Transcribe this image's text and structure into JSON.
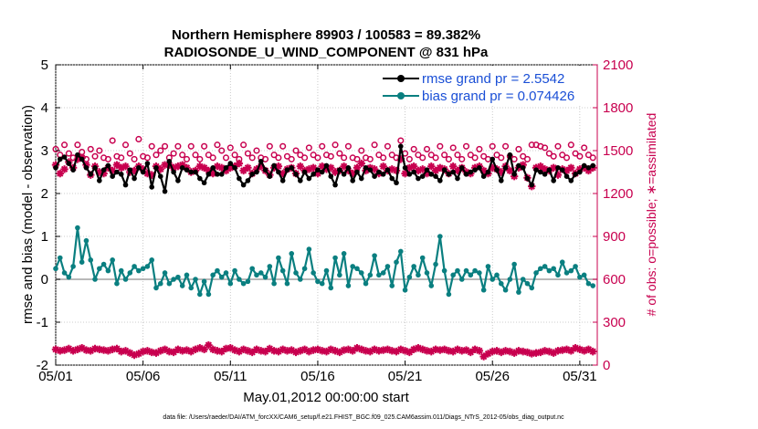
{
  "chart_data": {
    "type": "line",
    "title": "Northern Hemisphere 89903 / 100583 = 89.382%",
    "subtitle": "RADIOSONDE_U_WIND_COMPONENT @ 831 hPa",
    "xlabel": "May.01,2012 00:00:00 start",
    "ylabel": "rmse and bias (model - observation)",
    "y2label": "# of obs: o=possible; ∗=assimilated",
    "xlim": [
      0,
      31
    ],
    "ylim": [
      -2,
      5
    ],
    "y2lim": [
      0,
      2100
    ],
    "x_ticks": [
      {
        "x": 0,
        "label": "05/01"
      },
      {
        "x": 5,
        "label": "05/06"
      },
      {
        "x": 10,
        "label": "05/11"
      },
      {
        "x": 15,
        "label": "05/16"
      },
      {
        "x": 20,
        "label": "05/21"
      },
      {
        "x": 25,
        "label": "05/26"
      },
      {
        "x": 30,
        "label": "05/31"
      }
    ],
    "y_ticks": [
      {
        "v": -2,
        "label": "-2"
      },
      {
        "v": -1,
        "label": "-1"
      },
      {
        "v": 0,
        "label": "0"
      },
      {
        "v": 1,
        "label": "1"
      },
      {
        "v": 2,
        "label": "2"
      },
      {
        "v": 3,
        "label": "3"
      },
      {
        "v": 4,
        "label": "4"
      },
      {
        "v": 5,
        "label": "5"
      }
    ],
    "y2_ticks": [
      {
        "v": 0,
        "label": "0"
      },
      {
        "v": 300,
        "label": "300"
      },
      {
        "v": 600,
        "label": "600"
      },
      {
        "v": 900,
        "label": "900"
      },
      {
        "v": 1200,
        "label": "1200"
      },
      {
        "v": 1500,
        "label": "1500"
      },
      {
        "v": 1800,
        "label": "1800"
      },
      {
        "v": 2100,
        "label": "2100"
      }
    ],
    "legend": {
      "position": "top-right",
      "entries": [
        "rmse grand pr = 2.5542",
        "bias grand pr = 0.074426"
      ]
    },
    "colors": {
      "rmse": "#000000",
      "bias": "#0a7f80",
      "obs": "#c8004f",
      "zero_line": "#a0a0a0"
    },
    "n_points": 124,
    "x_start": 0,
    "x_step": 0.25,
    "series": [
      {
        "name": "rmse",
        "values": [
          2.6,
          2.8,
          2.85,
          2.7,
          2.55,
          2.9,
          2.8,
          2.6,
          2.45,
          2.6,
          2.3,
          2.55,
          2.65,
          2.4,
          2.5,
          2.45,
          2.2,
          2.55,
          2.35,
          2.6,
          2.5,
          2.7,
          2.15,
          2.6,
          2.4,
          2.05,
          2.75,
          2.5,
          2.3,
          2.6,
          2.55,
          2.5,
          2.5,
          2.35,
          2.25,
          2.45,
          2.6,
          2.45,
          2.45,
          2.6,
          2.7,
          2.6,
          2.35,
          2.2,
          2.3,
          2.45,
          2.5,
          2.75,
          2.55,
          2.4,
          2.65,
          2.5,
          2.3,
          2.55,
          2.6,
          2.45,
          2.3,
          2.5,
          2.35,
          2.45,
          2.55,
          2.5,
          2.65,
          2.4,
          2.2,
          2.55,
          2.45,
          2.6,
          2.3,
          2.5,
          2.35,
          2.6,
          2.55,
          2.4,
          2.5,
          2.45,
          2.55,
          2.35,
          2.25,
          3.1,
          2.6,
          2.45,
          2.5,
          2.35,
          2.4,
          2.55,
          2.45,
          2.4,
          2.3,
          2.55,
          2.45,
          2.5,
          2.35,
          2.6,
          2.45,
          2.5,
          2.55,
          2.6,
          2.4,
          2.5,
          2.8,
          2.55,
          2.3,
          2.6,
          2.9,
          2.45,
          2.65,
          2.6,
          2.35,
          2.2,
          2.55,
          2.5,
          2.45,
          2.55,
          2.3,
          2.6,
          2.55,
          2.4,
          2.3,
          2.45,
          2.5,
          2.65,
          2.6,
          2.65
        ]
      },
      {
        "name": "bias",
        "values": [
          0.25,
          0.5,
          0.15,
          0.05,
          0.3,
          1.2,
          0.4,
          0.9,
          0.45,
          0.0,
          0.25,
          0.35,
          0.2,
          0.45,
          -0.1,
          0.2,
          0.0,
          0.15,
          0.3,
          0.2,
          0.25,
          0.3,
          0.45,
          -0.2,
          -0.1,
          0.15,
          -0.1,
          0.0,
          0.05,
          -0.15,
          0.1,
          -0.2,
          0.0,
          -0.35,
          -0.05,
          -0.35,
          0.1,
          0.2,
          0.05,
          0.15,
          -0.1,
          0.2,
          0.0,
          -0.1,
          -0.05,
          0.25,
          0.1,
          0.15,
          0.05,
          0.3,
          -0.1,
          0.5,
          0.2,
          -0.1,
          0.6,
          0.15,
          0.0,
          0.25,
          0.7,
          0.15,
          -0.05,
          -0.1,
          0.2,
          -0.2,
          0.5,
          0.1,
          0.6,
          -0.15,
          0.3,
          0.25,
          0.15,
          -0.1,
          0.1,
          0.55,
          0.1,
          0.15,
          0.3,
          -0.15,
          0.4,
          0.65,
          -0.25,
          0.05,
          0.3,
          0.1,
          0.5,
          0.15,
          -0.15,
          0.35,
          1.0,
          0.2,
          -0.35,
          0.1,
          0.2,
          0.0,
          0.2,
          0.1,
          0.2,
          0.15,
          -0.25,
          0.3,
          0.0,
          0.1,
          -0.1,
          -0.25,
          0.0,
          0.35,
          -0.3,
          0.0,
          -0.1,
          -0.2,
          0.15,
          0.25,
          0.3,
          0.2,
          0.25,
          0.1,
          0.4,
          0.15,
          0.2,
          0.3,
          0.05,
          0.1,
          -0.1,
          -0.15
        ]
      },
      {
        "name": "obs_possible",
        "axis": "right",
        "values": [
          1510,
          1470,
          1540,
          1480,
          1450,
          1540,
          1490,
          1440,
          1510,
          1460,
          1500,
          1450,
          1440,
          1570,
          1460,
          1450,
          1540,
          1480,
          1440,
          1580,
          1460,
          1450,
          1530,
          1470,
          1500,
          1530,
          1450,
          1480,
          1530,
          1470,
          1440,
          1530,
          1470,
          1440,
          1530,
          1470,
          1450,
          1540,
          1500,
          1450,
          1520,
          1470,
          1440,
          1540,
          1480,
          1450,
          1500,
          1450,
          1440,
          1530,
          1470,
          1450,
          1530,
          1460,
          1440,
          1500,
          1470,
          1450,
          1520,
          1470,
          1450,
          1530,
          1470,
          1460,
          1540,
          1480,
          1450,
          1530,
          1450,
          1440,
          1500,
          1450,
          1440,
          1540,
          1470,
          1450,
          1530,
          1470,
          1450,
          1570,
          1480,
          1440,
          1510,
          1470,
          1450,
          1510,
          1470,
          1450,
          1530,
          1470,
          1440,
          1520,
          1470,
          1440,
          1530,
          1470,
          1450,
          1510,
          1460,
          1440,
          1530,
          1470,
          1450,
          1530,
          1460,
          1440,
          1510,
          1460,
          1440,
          1540,
          1540,
          1530,
          1520,
          1480,
          1460,
          1530,
          1470,
          1450,
          1540,
          1480,
          1460,
          1520,
          1470,
          1450
        ]
      },
      {
        "name": "obs_assimilated",
        "axis": "right",
        "values": [
          1400,
          1340,
          1370,
          1420,
          1380,
          1440,
          1450,
          1400,
          1330,
          1390,
          1350,
          1340,
          1380,
          1360,
          1400,
          1380,
          1390,
          1350,
          1360,
          1390,
          1370,
          1340,
          1330,
          1390,
          1370,
          1400,
          1400,
          1380,
          1390,
          1400,
          1380,
          1350,
          1360,
          1390,
          1380,
          1360,
          1340,
          1390,
          1380,
          1360,
          1380,
          1390,
          1410,
          1360,
          1380,
          1340,
          1370,
          1390,
          1360,
          1330,
          1380,
          1390,
          1340,
          1370,
          1380,
          1340,
          1390,
          1360,
          1370,
          1380,
          1340,
          1390,
          1370,
          1380,
          1350,
          1360,
          1390,
          1360,
          1340,
          1380,
          1410,
          1360,
          1380,
          1370,
          1340,
          1390,
          1360,
          1370,
          1360,
          1440,
          1340,
          1380,
          1390,
          1360,
          1370,
          1340,
          1390,
          1360,
          1380,
          1370,
          1340,
          1390,
          1360,
          1380,
          1350,
          1340,
          1380,
          1390,
          1360,
          1340,
          1380,
          1370,
          1350,
          1390,
          1360,
          1320,
          1380,
          1400,
          1310,
          1250,
          1380,
          1390,
          1370,
          1360,
          1380,
          1330,
          1370,
          1360,
          1380,
          1340,
          1370,
          1380,
          1360,
          1380
        ]
      },
      {
        "name": "obs_assimilated_bottom",
        "axis": "right",
        "values": [
          110,
          100,
          105,
          115,
          100,
          110,
          120,
          105,
          100,
          115,
          110,
          105,
          100,
          110,
          115,
          95,
          100,
          85,
          70,
          80,
          95,
          100,
          90,
          85,
          100,
          110,
          95,
          90,
          110,
          100,
          105,
          95,
          110,
          120,
          110,
          140,
          110,
          100,
          95,
          115,
          120,
          105,
          95,
          110,
          100,
          90,
          110,
          100,
          95,
          115,
          100,
          95,
          110,
          100,
          105,
          90,
          100,
          110,
          95,
          105,
          110,
          100,
          95,
          110,
          100,
          90,
          105,
          110,
          100,
          120,
          110,
          100,
          95,
          110,
          100,
          105,
          110,
          100,
          95,
          110,
          100,
          90,
          110,
          120,
          110,
          100,
          95,
          110,
          105,
          110,
          100,
          95,
          110,
          100,
          105,
          90,
          110,
          100,
          60,
          80,
          95,
          100,
          90,
          100,
          95,
          85,
          100,
          95,
          90,
          80,
          85,
          90,
          100,
          95,
          85,
          100,
          105,
          110,
          100,
          120,
          110,
          100,
          110,
          95
        ]
      }
    ]
  },
  "footer": "data file: /Users/raeder/DAI/ATM_forcXX/CAM6_setup/f.e21.FHIST_BGC.f09_025.CAM6assim.011/Diags_NTrS_2012-05/obs_diag_output.nc"
}
